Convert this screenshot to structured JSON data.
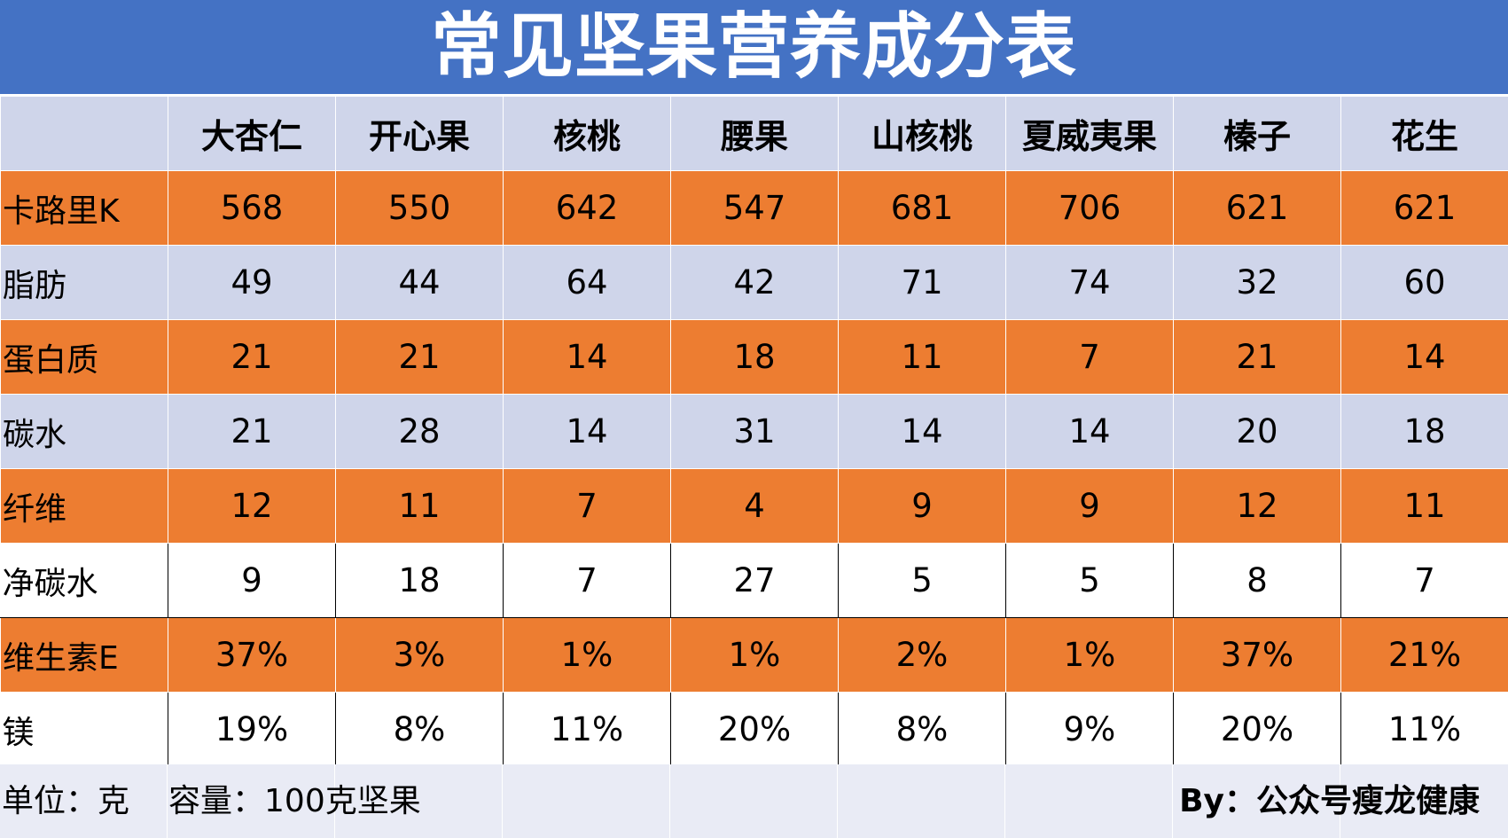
{
  "title": "常见坚果营养成分表",
  "header": {
    "corner": "",
    "columns": [
      "大杏仁",
      "开心果",
      "核桃",
      "腰果",
      "山核桃",
      "夏威夷果",
      "榛子",
      "花生"
    ]
  },
  "rows": [
    {
      "label": "卡路里K",
      "values": [
        "568",
        "550",
        "642",
        "547",
        "681",
        "706",
        "621",
        "621"
      ]
    },
    {
      "label": "脂肪",
      "values": [
        "49",
        "44",
        "64",
        "42",
        "71",
        "74",
        "32",
        "60"
      ]
    },
    {
      "label": "蛋白质",
      "values": [
        "21",
        "21",
        "14",
        "18",
        "11",
        "7",
        "21",
        "14"
      ]
    },
    {
      "label": "碳水",
      "values": [
        "21",
        "28",
        "14",
        "31",
        "14",
        "14",
        "20",
        "18"
      ]
    },
    {
      "label": "纤维",
      "values": [
        "12",
        "11",
        "7",
        "4",
        "9",
        "9",
        "12",
        "11"
      ]
    },
    {
      "label": "净碳水",
      "values": [
        "9",
        "18",
        "7",
        "27",
        "5",
        "5",
        "8",
        "7"
      ]
    },
    {
      "label": "维生素E",
      "values": [
        "37%",
        "3%",
        "1%",
        "1%",
        "2%",
        "1%",
        "37%",
        "21%"
      ]
    },
    {
      "label": "镁",
      "values": [
        "19%",
        "8%",
        "11%",
        "20%",
        "8%",
        "9%",
        "20%",
        "11%"
      ]
    }
  ],
  "footer": {
    "unit": "单位：克",
    "capacity": "容量：100克坚果",
    "credit": "By：公众号瘦龙健康"
  },
  "colors": {
    "title_bg": "#4472c4",
    "header_bg": "#cfd5ea",
    "orange_row": "#ed7d31",
    "lavender_row": "#cfd5ea",
    "white_row": "#ffffff",
    "footer_bg": "#e9ebf5"
  }
}
